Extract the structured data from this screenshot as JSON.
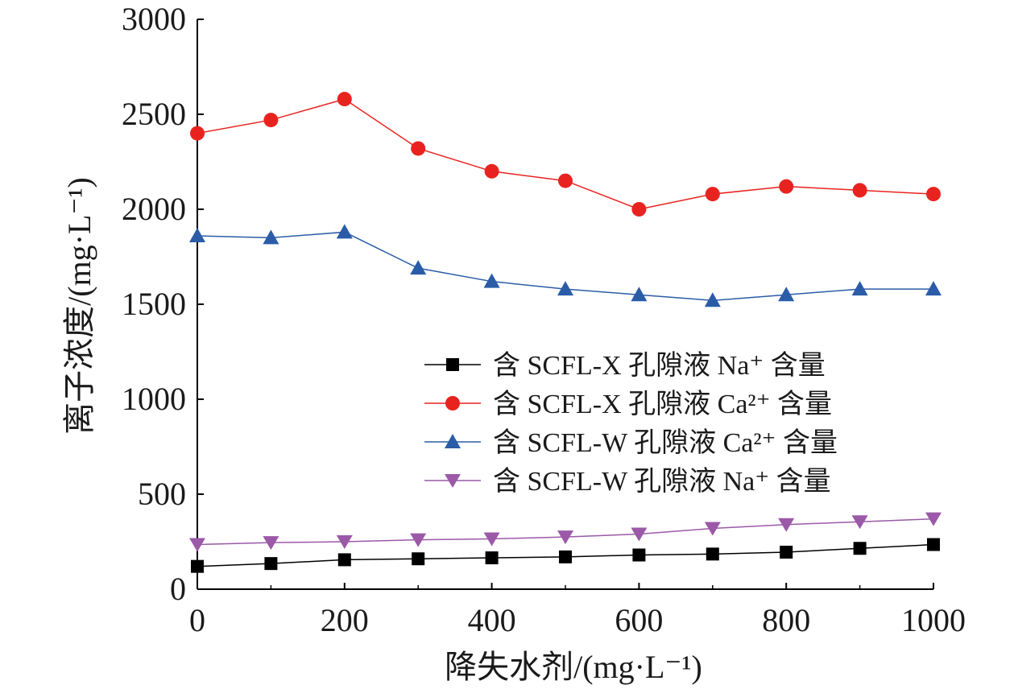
{
  "chart_data": {
    "type": "line",
    "xlabel": "降失水剂/(mg·L⁻¹)",
    "ylabel": "离子浓度/(mg·L⁻¹)",
    "xlim": [
      0,
      1000
    ],
    "ylim": [
      0,
      3000
    ],
    "xticks": [
      0,
      200,
      400,
      600,
      800,
      1000
    ],
    "yticks": [
      0,
      500,
      1000,
      1500,
      2000,
      2500,
      3000
    ],
    "x": [
      0,
      100,
      200,
      300,
      400,
      500,
      600,
      700,
      800,
      900,
      1000
    ],
    "legend_position": "center-right",
    "series": [
      {
        "name": "含 SCFL-X 孔隙液 Na⁺ 含量",
        "color": "#000000",
        "marker": "square",
        "values": [
          120,
          135,
          155,
          160,
          165,
          170,
          180,
          185,
          195,
          215,
          235
        ]
      },
      {
        "name": "含 SCFL-X 孔隙液 Ca²⁺ 含量",
        "color": "#e8231f",
        "marker": "circle",
        "values": [
          2400,
          2470,
          2580,
          2320,
          2200,
          2150,
          2000,
          2080,
          2120,
          2100,
          2080
        ]
      },
      {
        "name": "含 SCFL-W 孔隙液 Ca²⁺ 含量",
        "color": "#2a5ca8",
        "marker": "triangle-up",
        "values": [
          1860,
          1850,
          1880,
          1690,
          1620,
          1580,
          1550,
          1520,
          1550,
          1580,
          1580
        ]
      },
      {
        "name": "含 SCFL-W 孔隙液 Na⁺ 含量",
        "color": "#9b59a8",
        "marker": "triangle-down",
        "values": [
          235,
          245,
          250,
          260,
          265,
          275,
          290,
          320,
          340,
          355,
          370
        ]
      }
    ]
  }
}
